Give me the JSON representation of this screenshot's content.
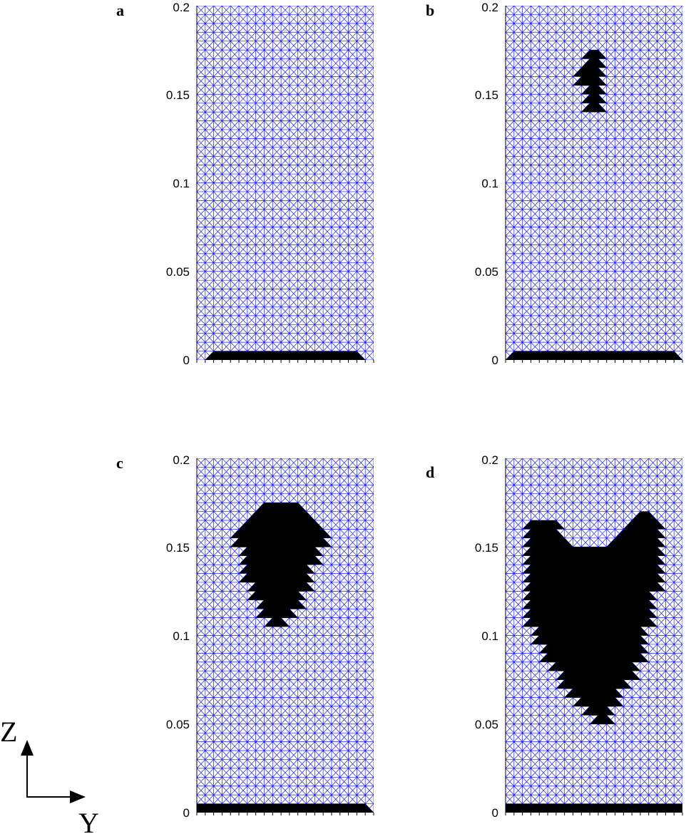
{
  "figure": {
    "colors": {
      "mesh": "#1a1aff",
      "damage": "#000000",
      "background": "#ffffff"
    },
    "axes_indicator": {
      "vertical_label": "Z",
      "horizontal_label": "Y"
    },
    "mesh": {
      "columns": 21,
      "rows": 40,
      "z_range": [
        0,
        0.2
      ]
    }
  },
  "chart_data": [
    {
      "type": "heatmap",
      "panel": "a",
      "ylim": [
        0,
        0.2
      ],
      "yticks": [
        "0",
        "0.05",
        "0.1",
        "0.15",
        "0.2"
      ],
      "grid": true,
      "base_layer": {
        "col_start": 2,
        "col_end": 19,
        "row_start": 0,
        "row_end": 1
      },
      "damaged_rows": []
    },
    {
      "type": "heatmap",
      "panel": "b",
      "ylim": [
        0,
        0.2
      ],
      "yticks": [
        "0",
        "0.05",
        "0.1",
        "0.15",
        "0.2"
      ],
      "grid": true,
      "base_layer": {
        "col_start": 1,
        "col_end": 20,
        "row_start": 0,
        "row_end": 1
      },
      "damaged_rows": [
        {
          "row": 5,
          "cols": [
            10,
            11
          ]
        },
        {
          "row": 6,
          "cols": [
            10,
            11
          ]
        },
        {
          "row": 7,
          "cols": [
            9,
            11
          ]
        },
        {
          "row": 8,
          "cols": [
            9,
            11
          ]
        },
        {
          "row": 9,
          "cols": [
            10,
            11
          ]
        },
        {
          "row": 10,
          "cols": [
            10,
            11
          ]
        },
        {
          "row": 11,
          "cols": [
            10,
            11
          ]
        }
      ]
    },
    {
      "type": "heatmap",
      "panel": "c",
      "ylim": [
        0,
        0.2
      ],
      "yticks": [
        "0",
        "0.05",
        "0.1",
        "0.15",
        "0.2"
      ],
      "grid": true,
      "base_layer": {
        "col_start": 0,
        "col_end": 20,
        "row_start": 0,
        "row_end": 1
      },
      "damaged_rows": [
        {
          "row": 5,
          "cols": [
            8,
            12
          ]
        },
        {
          "row": 6,
          "cols": [
            7,
            13
          ]
        },
        {
          "row": 7,
          "cols": [
            6,
            14
          ]
        },
        {
          "row": 8,
          "cols": [
            5,
            15
          ]
        },
        {
          "row": 9,
          "cols": [
            5,
            15
          ]
        },
        {
          "row": 10,
          "cols": [
            6,
            14
          ]
        },
        {
          "row": 11,
          "cols": [
            6,
            14
          ]
        },
        {
          "row": 12,
          "cols": [
            6,
            13
          ]
        },
        {
          "row": 13,
          "cols": [
            6,
            13
          ]
        },
        {
          "row": 14,
          "cols": [
            7,
            13
          ]
        },
        {
          "row": 15,
          "cols": [
            7,
            12
          ]
        },
        {
          "row": 16,
          "cols": [
            8,
            12
          ]
        },
        {
          "row": 17,
          "cols": [
            8,
            11
          ]
        },
        {
          "row": 18,
          "cols": [
            9,
            10
          ]
        }
      ]
    },
    {
      "type": "heatmap",
      "panel": "d",
      "ylim": [
        0,
        0.2
      ],
      "yticks": [
        "0",
        "0.05",
        "0.1",
        "0.15",
        "0.2"
      ],
      "grid": true,
      "base_layer": {
        "col_start": 0,
        "col_end": 21,
        "row_start": 0,
        "row_end": 1
      },
      "damaged_rows": [
        {
          "row": 6,
          "cols": [
            16,
            17
          ]
        },
        {
          "row": 7,
          "cols": [
            3,
            6
          ]
        },
        {
          "row": 7,
          "cols": [
            15,
            18
          ]
        },
        {
          "row": 8,
          "cols": [
            3,
            6
          ]
        },
        {
          "row": 8,
          "cols": [
            14,
            18
          ]
        },
        {
          "row": 9,
          "cols": [
            3,
            7
          ]
        },
        {
          "row": 9,
          "cols": [
            13,
            18
          ]
        },
        {
          "row": 10,
          "cols": [
            3,
            18
          ]
        },
        {
          "row": 11,
          "cols": [
            3,
            18
          ]
        },
        {
          "row": 12,
          "cols": [
            3,
            18
          ]
        },
        {
          "row": 13,
          "cols": [
            3,
            18
          ]
        },
        {
          "row": 14,
          "cols": [
            3,
            18
          ]
        },
        {
          "row": 15,
          "cols": [
            3,
            17
          ]
        },
        {
          "row": 16,
          "cols": [
            3,
            17
          ]
        },
        {
          "row": 17,
          "cols": [
            3,
            17
          ]
        },
        {
          "row": 18,
          "cols": [
            3,
            17
          ]
        },
        {
          "row": 19,
          "cols": [
            4,
            16
          ]
        },
        {
          "row": 20,
          "cols": [
            4,
            16
          ]
        },
        {
          "row": 21,
          "cols": [
            5,
            16
          ]
        },
        {
          "row": 22,
          "cols": [
            5,
            16
          ]
        },
        {
          "row": 23,
          "cols": [
            6,
            15
          ]
        },
        {
          "row": 24,
          "cols": [
            7,
            15
          ]
        },
        {
          "row": 25,
          "cols": [
            7,
            14
          ]
        },
        {
          "row": 26,
          "cols": [
            8,
            13
          ]
        },
        {
          "row": 27,
          "cols": [
            9,
            13
          ]
        },
        {
          "row": 28,
          "cols": [
            10,
            12
          ]
        },
        {
          "row": 29,
          "cols": [
            11,
            12
          ]
        }
      ]
    }
  ]
}
